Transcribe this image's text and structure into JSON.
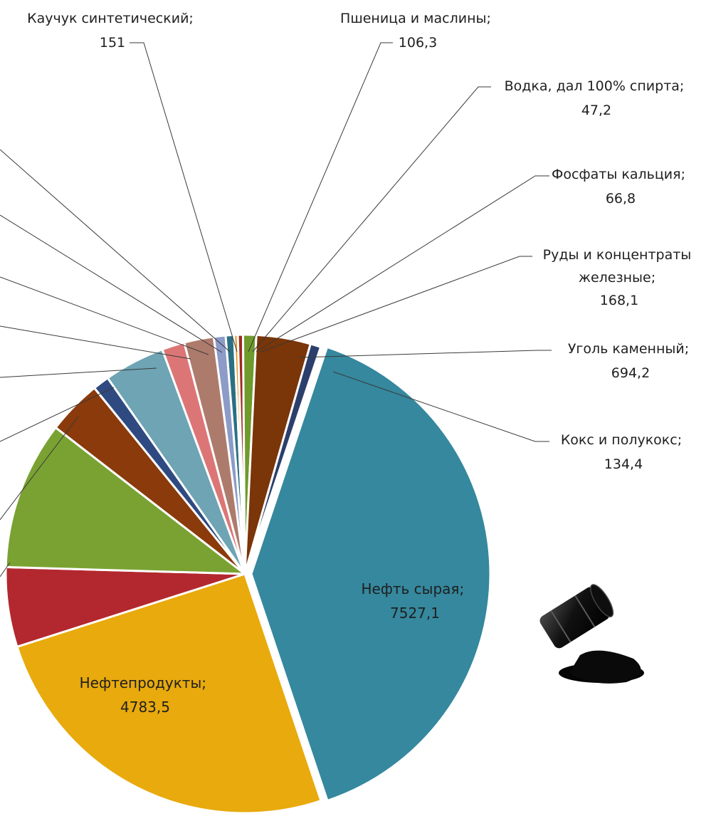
{
  "chart_data": {
    "type": "pie",
    "title": "",
    "colors": {
      "crude_oil": "#35889e",
      "petroleum_products": "#e8aa0c",
      "red": "#b3282e",
      "green": "#7aa232",
      "brown": "#8a3a0b",
      "navy": "#2f4a80",
      "steel_blue": "#6ea4b4",
      "pink": "#dc7676",
      "rose_brown": "#ad7b6c",
      "lavender": "#8c9bc7",
      "teal": "#2b6f83",
      "orange": "#e7961c",
      "dark_red": "#9e2a20",
      "light_green": "#6f9a2c",
      "dark_brown": "#7a3508",
      "dark_navy": "#2c3f6c"
    },
    "slices": [
      {
        "label": "Нефть сырая",
        "value": 7527.1,
        "display": "7527,1",
        "color_key": "crude_oil",
        "labeled": true,
        "inside": true
      },
      {
        "label": "Нефтепродукты",
        "value": 4783.5,
        "display": "4783,5",
        "color_key": "petroleum_products",
        "labeled": true,
        "inside": true
      },
      {
        "label": "",
        "value": 1020,
        "display": "",
        "color_key": "red",
        "labeled": false
      },
      {
        "label": "",
        "value": 1900,
        "display": "",
        "color_key": "green",
        "labeled": false
      },
      {
        "label": "",
        "value": 700,
        "display": "",
        "color_key": "brown",
        "labeled": false
      },
      {
        "label": "",
        "value": 210,
        "display": "",
        "color_key": "navy",
        "labeled": false
      },
      {
        "label": "",
        "value": 780,
        "display": "",
        "color_key": "steel_blue",
        "labeled": false
      },
      {
        "label": "",
        "value": 290,
        "display": "",
        "color_key": "pink",
        "labeled": false
      },
      {
        "label": "",
        "value": 380,
        "display": "",
        "color_key": "rose_brown",
        "labeled": false
      },
      {
        "label": "Каучук синтетический",
        "value": 151,
        "display": "151",
        "color_key": "lavender",
        "labeled": true
      },
      {
        "label": "Пшеница и маслины",
        "value": 106.3,
        "display": "106,3",
        "color_key": "teal",
        "labeled": true
      },
      {
        "label": "Водка, дал 100% спирта",
        "value": 47.2,
        "display": "47,2",
        "color_key": "orange",
        "labeled": true
      },
      {
        "label": "Фосфаты кальция",
        "value": 66.8,
        "display": "66,8",
        "color_key": "dark_red",
        "labeled": true
      },
      {
        "label": "Руды и концентраты железные",
        "value": 168.1,
        "display": "168,1",
        "color_key": "light_green",
        "labeled": true
      },
      {
        "label": "Уголь каменный",
        "value": 694.2,
        "display": "694,2",
        "color_key": "dark_brown",
        "labeled": true
      },
      {
        "label": "Кокс и полукокс",
        "value": 134.4,
        "display": "134,4",
        "color_key": "dark_navy",
        "labeled": true
      }
    ]
  },
  "labels": {
    "kauchuk": {
      "line1": "Каучук синтетический;",
      "line2": "151"
    },
    "wheat": {
      "line1": "Пшеница и маслины;",
      "line2": "106,3"
    },
    "vodka": {
      "line1": "Водка, дал 100% спирта;",
      "line2": "47,2"
    },
    "phosphates": {
      "line1": "Фосфаты кальция;",
      "line2": "66,8"
    },
    "ores": {
      "line1": "Руды и концентраты",
      "line2": "железные;",
      "line3": "168,1"
    },
    "coal": {
      "line1": "Уголь каменный;",
      "line2": "694,2"
    },
    "coke": {
      "line1": "Кокс и полукокс;",
      "line2": "134,4"
    },
    "oil": {
      "line1": "Нефть сырая;",
      "line2": "7527,1"
    },
    "petro": {
      "line1": "Нефтепродукты;",
      "line2": "4783,5"
    }
  },
  "decoration": {
    "icon": "oil-barrel-spill-icon"
  }
}
